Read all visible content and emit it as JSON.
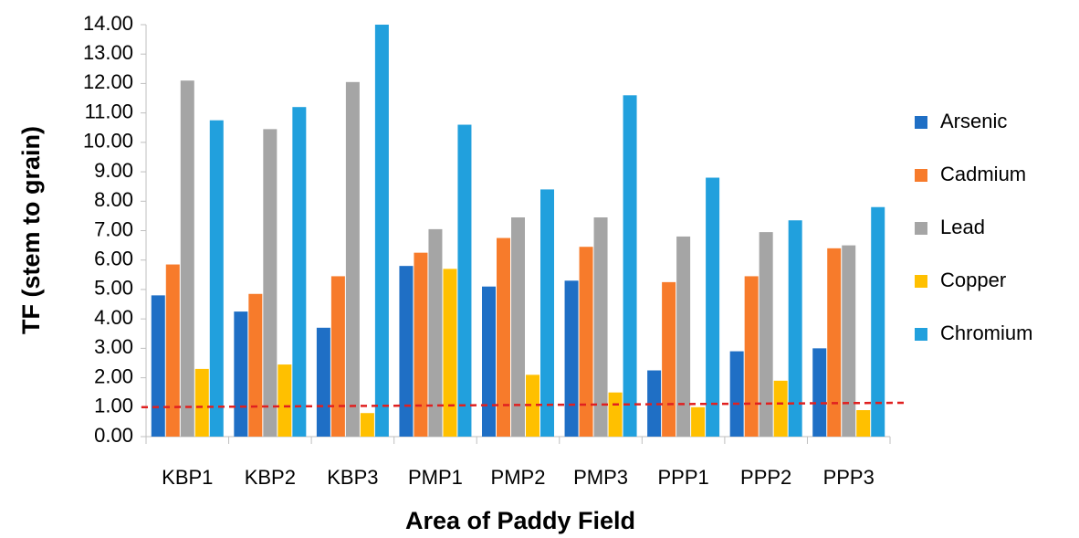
{
  "chart_data": {
    "type": "bar",
    "x_label": "Area of Paddy Field",
    "y_label": "TF (stem to grain)",
    "categories": [
      "KBP1",
      "KBP2",
      "KBP3",
      "PMP1",
      "PMP2",
      "PMP3",
      "PPP1",
      "PPP2",
      "PPP3"
    ],
    "series": [
      {
        "name": "Arsenic",
        "color": "#1f6fc5",
        "values": [
          4.8,
          4.25,
          3.7,
          5.8,
          5.1,
          5.3,
          2.25,
          2.9,
          3.0
        ]
      },
      {
        "name": "Cadmium",
        "color": "#f77b2b",
        "values": [
          5.85,
          4.85,
          5.45,
          6.25,
          6.75,
          6.45,
          5.25,
          5.45,
          6.4
        ]
      },
      {
        "name": "Lead",
        "color": "#a5a5a5",
        "values": [
          12.1,
          10.45,
          12.05,
          7.05,
          7.45,
          7.45,
          6.8,
          6.95,
          6.5
        ]
      },
      {
        "name": "Copper",
        "color": "#ffc000",
        "values": [
          2.3,
          2.45,
          0.8,
          5.7,
          2.1,
          1.5,
          1.0,
          1.9,
          0.9
        ]
      },
      {
        "name": "Chromium",
        "color": "#21a0dd",
        "values": [
          10.75,
          11.2,
          14.0,
          10.6,
          8.4,
          11.6,
          8.8,
          7.35,
          7.8
        ]
      }
    ],
    "threshold": {
      "values": [
        1.0,
        1.15
      ],
      "color": "#e02020"
    },
    "ylim": [
      0,
      14
    ],
    "yticks": [
      {
        "value": 0,
        "label": "0.00"
      },
      {
        "value": 1,
        "label": "1.00"
      },
      {
        "value": 2,
        "label": "2.00"
      },
      {
        "value": 3,
        "label": "3.00"
      },
      {
        "value": 4,
        "label": "4.00"
      },
      {
        "value": 5,
        "label": "5.00"
      },
      {
        "value": 6,
        "label": "6.00"
      },
      {
        "value": 7,
        "label": "7.00"
      },
      {
        "value": 8,
        "label": "8.00"
      },
      {
        "value": 9,
        "label": "9.00"
      },
      {
        "value": 10,
        "label": "10.00"
      },
      {
        "value": 11,
        "label": "11.00"
      },
      {
        "value": 12,
        "label": "12.00"
      },
      {
        "value": 13,
        "label": "13.00"
      },
      {
        "value": 14,
        "label": "14.00"
      }
    ],
    "legend": "right"
  }
}
